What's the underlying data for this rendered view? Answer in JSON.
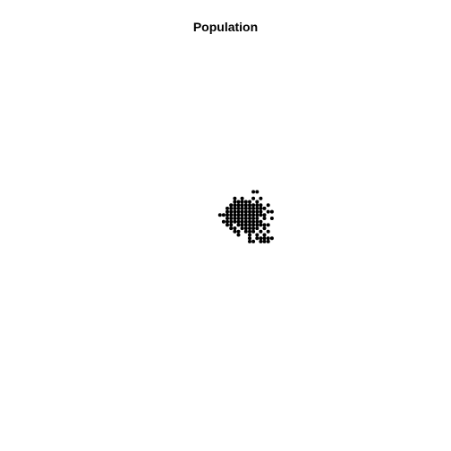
{
  "chart_data": {
    "type": "scatter",
    "title": "Population",
    "xlabel": "",
    "ylabel": "",
    "axes_visible": false,
    "grid": false,
    "xlim": [
      0,
      100
    ],
    "ylim": [
      0,
      100
    ],
    "marker_color": "#000000",
    "points": [
      [
        54,
        58
      ],
      [
        55,
        58
      ],
      [
        49,
        56
      ],
      [
        51,
        56
      ],
      [
        54,
        56
      ],
      [
        56,
        56
      ],
      [
        49,
        55
      ],
      [
        50,
        55
      ],
      [
        51,
        55
      ],
      [
        52,
        55
      ],
      [
        53,
        55
      ],
      [
        55,
        55
      ],
      [
        48,
        54
      ],
      [
        49,
        54
      ],
      [
        50,
        54
      ],
      [
        51,
        54
      ],
      [
        52,
        54
      ],
      [
        53,
        54
      ],
      [
        54,
        54
      ],
      [
        55,
        54
      ],
      [
        56,
        54
      ],
      [
        58,
        54
      ],
      [
        47,
        53
      ],
      [
        48,
        53
      ],
      [
        49,
        53
      ],
      [
        50,
        53
      ],
      [
        51,
        53
      ],
      [
        52,
        53
      ],
      [
        53,
        53
      ],
      [
        54,
        53
      ],
      [
        55,
        53
      ],
      [
        56,
        53
      ],
      [
        57,
        53
      ],
      [
        47,
        52
      ],
      [
        48,
        52
      ],
      [
        49,
        52
      ],
      [
        50,
        52
      ],
      [
        51,
        52
      ],
      [
        52,
        52
      ],
      [
        53,
        52
      ],
      [
        54,
        52
      ],
      [
        55,
        52
      ],
      [
        56,
        52
      ],
      [
        58,
        52
      ],
      [
        59,
        52
      ],
      [
        45,
        51
      ],
      [
        46,
        51
      ],
      [
        47,
        51
      ],
      [
        48,
        51
      ],
      [
        49,
        51
      ],
      [
        50,
        51
      ],
      [
        51,
        51
      ],
      [
        52,
        51
      ],
      [
        53,
        51
      ],
      [
        54,
        51
      ],
      [
        55,
        51
      ],
      [
        56,
        51
      ],
      [
        57,
        51
      ],
      [
        47,
        50
      ],
      [
        48,
        50
      ],
      [
        49,
        50
      ],
      [
        50,
        50
      ],
      [
        51,
        50
      ],
      [
        52,
        50
      ],
      [
        53,
        50
      ],
      [
        54,
        50
      ],
      [
        55,
        50
      ],
      [
        57,
        50
      ],
      [
        59,
        50
      ],
      [
        46,
        49
      ],
      [
        47,
        49
      ],
      [
        48,
        49
      ],
      [
        49,
        49
      ],
      [
        50,
        49
      ],
      [
        51,
        49
      ],
      [
        52,
        49
      ],
      [
        53,
        49
      ],
      [
        54,
        49
      ],
      [
        55,
        49
      ],
      [
        56,
        49
      ],
      [
        47,
        48
      ],
      [
        48,
        48
      ],
      [
        50,
        48
      ],
      [
        51,
        48
      ],
      [
        52,
        48
      ],
      [
        53,
        48
      ],
      [
        54,
        48
      ],
      [
        55,
        48
      ],
      [
        56,
        48
      ],
      [
        57,
        48
      ],
      [
        58,
        48
      ],
      [
        48,
        47
      ],
      [
        49,
        47
      ],
      [
        51,
        47
      ],
      [
        52,
        47
      ],
      [
        53,
        47
      ],
      [
        54,
        47
      ],
      [
        55,
        47
      ],
      [
        57,
        47
      ],
      [
        49,
        46
      ],
      [
        50,
        46
      ],
      [
        52,
        46
      ],
      [
        53,
        46
      ],
      [
        54,
        46
      ],
      [
        56,
        46
      ],
      [
        58,
        46
      ],
      [
        50,
        45
      ],
      [
        53,
        45
      ],
      [
        55,
        45
      ],
      [
        57,
        45
      ],
      [
        53,
        44
      ],
      [
        55,
        44
      ],
      [
        56,
        44
      ],
      [
        57,
        44
      ],
      [
        58,
        44
      ],
      [
        59,
        44
      ],
      [
        53,
        43
      ],
      [
        54,
        43
      ],
      [
        56,
        43
      ],
      [
        57,
        43
      ],
      [
        58,
        43
      ]
    ]
  }
}
